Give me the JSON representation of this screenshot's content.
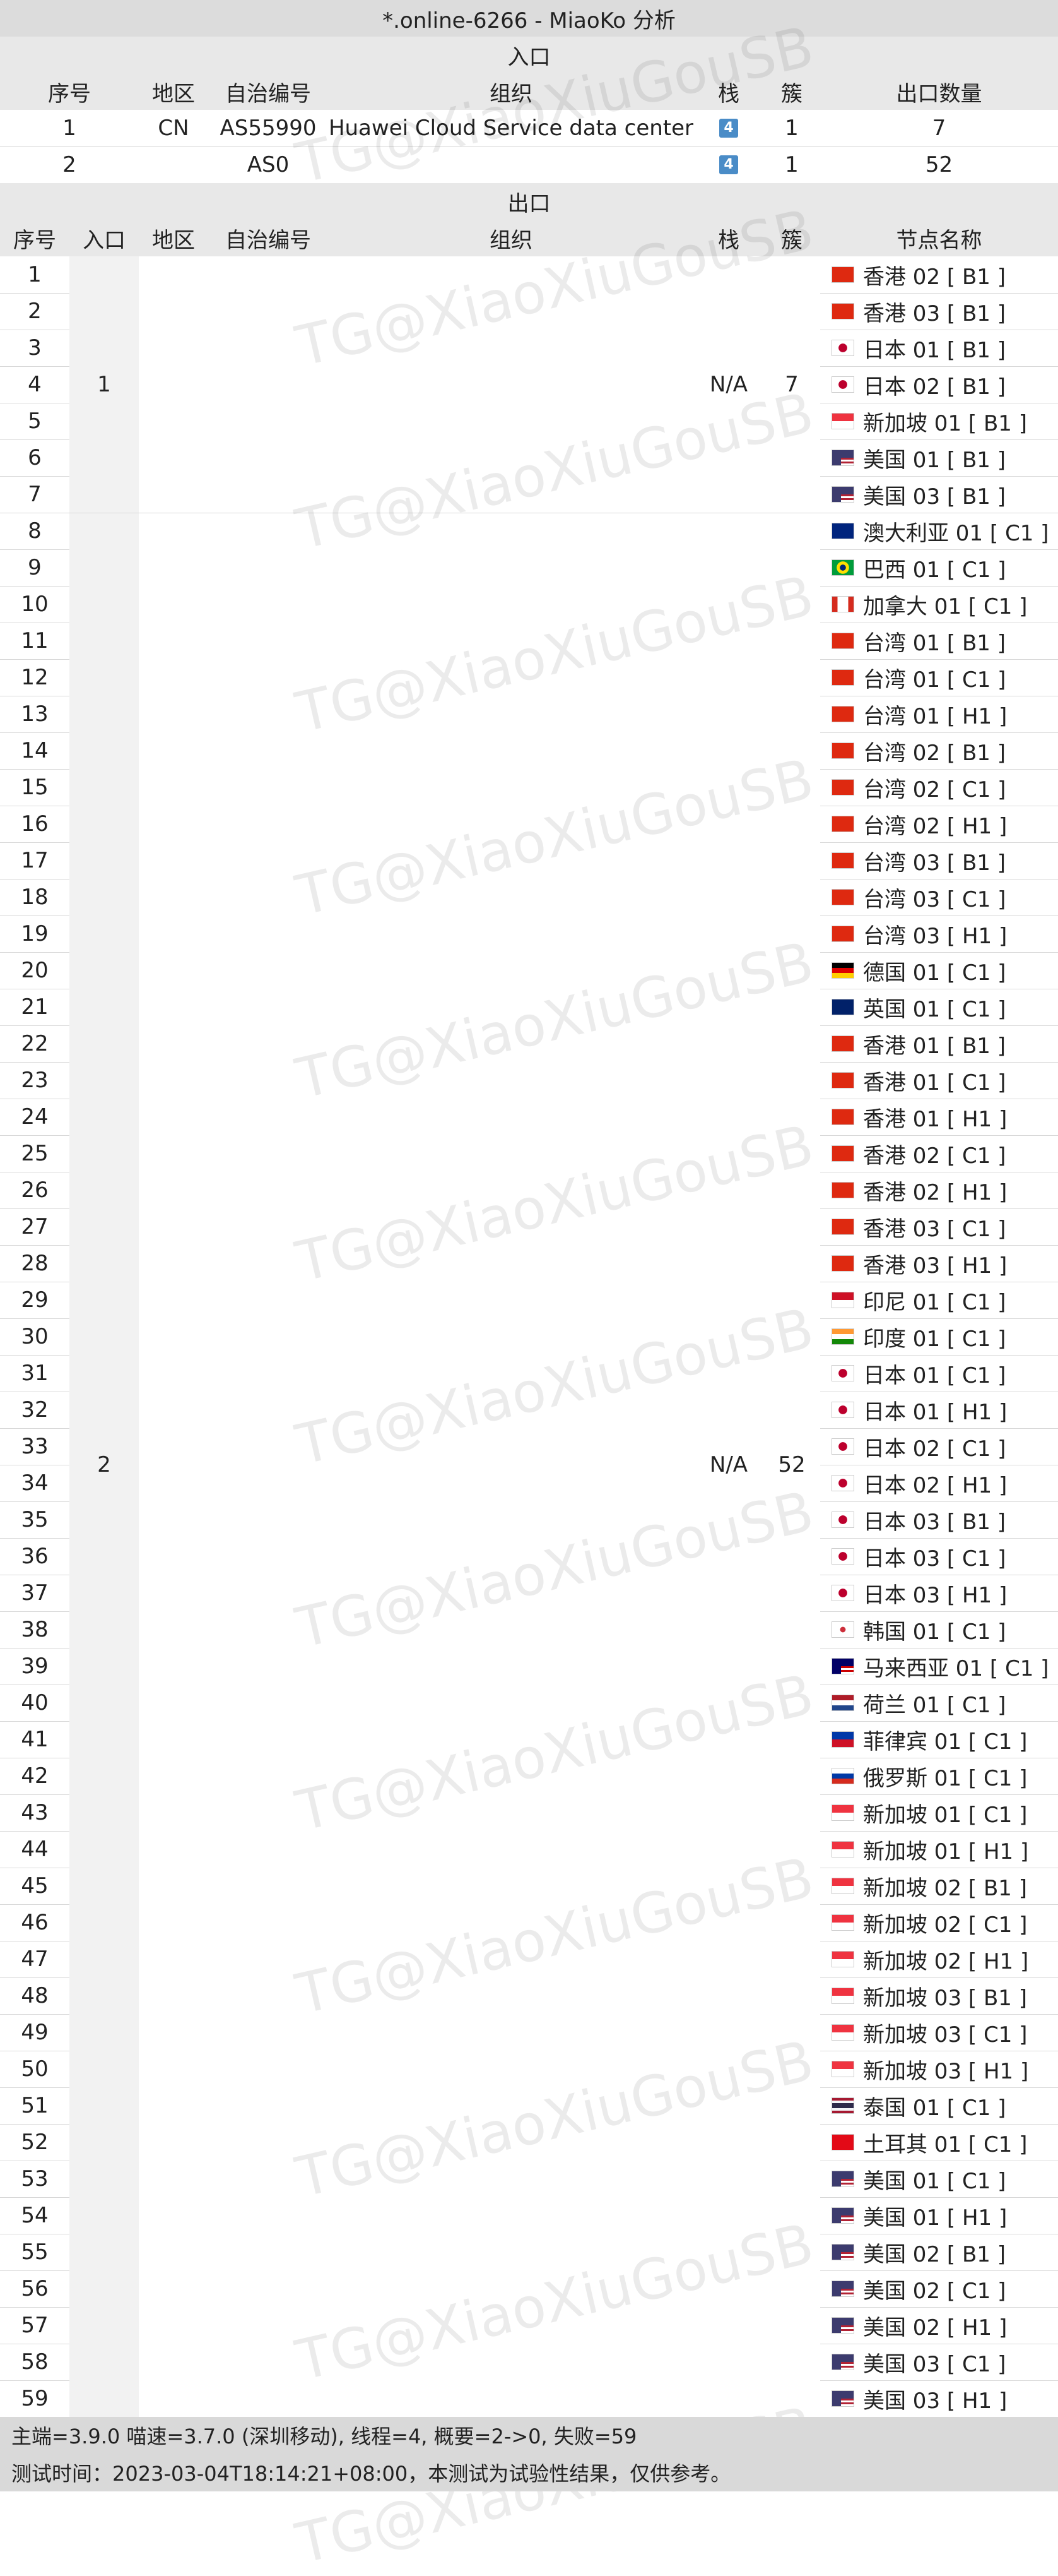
{
  "title": "*.online-6266 - MiaoKo 分析",
  "entry_section": "入口",
  "exit_section": "出口",
  "entry_headers": [
    "序号",
    "地区",
    "自治编号",
    "组织",
    "栈",
    "簇",
    "出口数量"
  ],
  "entry_rows": [
    {
      "idx": "1",
      "region": "CN",
      "asn": "AS55990",
      "org": "Huawei Cloud Service data center",
      "stack": "4",
      "cluster": "1",
      "exits": "7"
    },
    {
      "idx": "2",
      "region": "",
      "asn": "AS0",
      "org": "",
      "stack": "4",
      "cluster": "1",
      "exits": "52"
    }
  ],
  "exit_headers": [
    "序号",
    "入口",
    "地区",
    "自治编号",
    "组织",
    "栈",
    "簇",
    "节点名称"
  ],
  "exit_groups": [
    {
      "entry": "1",
      "stack": "N/A",
      "cluster": "7",
      "start": 1,
      "end": 7
    },
    {
      "entry": "2",
      "stack": "N/A",
      "cluster": "52",
      "start": 8,
      "end": 59
    }
  ],
  "nodes": [
    {
      "idx": "1",
      "flag": "hk",
      "name": "香港 02 [ B1 ]"
    },
    {
      "idx": "2",
      "flag": "hk",
      "name": "香港 03 [ B1 ]"
    },
    {
      "idx": "3",
      "flag": "jp",
      "name": "日本 01 [ B1 ]"
    },
    {
      "idx": "4",
      "flag": "jp",
      "name": "日本 02 [ B1 ]"
    },
    {
      "idx": "5",
      "flag": "sg",
      "name": "新加坡 01 [ B1 ]"
    },
    {
      "idx": "6",
      "flag": "us",
      "name": "美国 01 [ B1 ]"
    },
    {
      "idx": "7",
      "flag": "us",
      "name": "美国 03 [ B1 ]"
    },
    {
      "idx": "8",
      "flag": "au",
      "name": "澳大利亚 01 [ C1 ]"
    },
    {
      "idx": "9",
      "flag": "br",
      "name": "巴西 01 [ C1 ]"
    },
    {
      "idx": "10",
      "flag": "ca",
      "name": "加拿大 01 [ C1 ]"
    },
    {
      "idx": "11",
      "flag": "cn",
      "name": "台湾 01 [ B1 ]"
    },
    {
      "idx": "12",
      "flag": "cn",
      "name": "台湾 01 [ C1 ]"
    },
    {
      "idx": "13",
      "flag": "cn",
      "name": "台湾 01 [ H1 ]"
    },
    {
      "idx": "14",
      "flag": "cn",
      "name": "台湾 02 [ B1 ]"
    },
    {
      "idx": "15",
      "flag": "cn",
      "name": "台湾 02 [ C1 ]"
    },
    {
      "idx": "16",
      "flag": "cn",
      "name": "台湾 02 [ H1 ]"
    },
    {
      "idx": "17",
      "flag": "cn",
      "name": "台湾 03 [ B1 ]"
    },
    {
      "idx": "18",
      "flag": "cn",
      "name": "台湾 03 [ C1 ]"
    },
    {
      "idx": "19",
      "flag": "cn",
      "name": "台湾 03 [ H1 ]"
    },
    {
      "idx": "20",
      "flag": "de",
      "name": "德国 01 [ C1 ]"
    },
    {
      "idx": "21",
      "flag": "gb",
      "name": "英国 01 [ C1 ]"
    },
    {
      "idx": "22",
      "flag": "hk",
      "name": "香港 01 [ B1 ]"
    },
    {
      "idx": "23",
      "flag": "hk",
      "name": "香港 01 [ C1 ]"
    },
    {
      "idx": "24",
      "flag": "hk",
      "name": "香港 01 [ H1 ]"
    },
    {
      "idx": "25",
      "flag": "hk",
      "name": "香港 02 [ C1 ]"
    },
    {
      "idx": "26",
      "flag": "hk",
      "name": "香港 02 [ H1 ]"
    },
    {
      "idx": "27",
      "flag": "hk",
      "name": "香港 03 [ C1 ]"
    },
    {
      "idx": "28",
      "flag": "hk",
      "name": "香港 03 [ H1 ]"
    },
    {
      "idx": "29",
      "flag": "id",
      "name": "印尼 01 [ C1 ]"
    },
    {
      "idx": "30",
      "flag": "in",
      "name": "印度 01 [ C1 ]"
    },
    {
      "idx": "31",
      "flag": "jp",
      "name": "日本 01 [ C1 ]"
    },
    {
      "idx": "32",
      "flag": "jp",
      "name": "日本 01 [ H1 ]"
    },
    {
      "idx": "33",
      "flag": "jp",
      "name": "日本 02 [ C1 ]"
    },
    {
      "idx": "34",
      "flag": "jp",
      "name": "日本 02 [ H1 ]"
    },
    {
      "idx": "35",
      "flag": "jp",
      "name": "日本 03 [ B1 ]"
    },
    {
      "idx": "36",
      "flag": "jp",
      "name": "日本 03 [ C1 ]"
    },
    {
      "idx": "37",
      "flag": "jp",
      "name": "日本 03 [ H1 ]"
    },
    {
      "idx": "38",
      "flag": "kr",
      "name": "韩国 01 [ C1 ]"
    },
    {
      "idx": "39",
      "flag": "my",
      "name": "马来西亚 01 [ C1 ]"
    },
    {
      "idx": "40",
      "flag": "nl",
      "name": "荷兰 01 [ C1 ]"
    },
    {
      "idx": "41",
      "flag": "ph",
      "name": "菲律宾 01 [ C1 ]"
    },
    {
      "idx": "42",
      "flag": "ru",
      "name": "俄罗斯 01 [ C1 ]"
    },
    {
      "idx": "43",
      "flag": "sg",
      "name": "新加坡 01 [ C1 ]"
    },
    {
      "idx": "44",
      "flag": "sg",
      "name": "新加坡 01 [ H1 ]"
    },
    {
      "idx": "45",
      "flag": "sg",
      "name": "新加坡 02 [ B1 ]"
    },
    {
      "idx": "46",
      "flag": "sg",
      "name": "新加坡 02 [ C1 ]"
    },
    {
      "idx": "47",
      "flag": "sg",
      "name": "新加坡 02 [ H1 ]"
    },
    {
      "idx": "48",
      "flag": "sg",
      "name": "新加坡 03 [ B1 ]"
    },
    {
      "idx": "49",
      "flag": "sg",
      "name": "新加坡 03 [ C1 ]"
    },
    {
      "idx": "50",
      "flag": "sg",
      "name": "新加坡 03 [ H1 ]"
    },
    {
      "idx": "51",
      "flag": "th",
      "name": "泰国 01 [ C1 ]"
    },
    {
      "idx": "52",
      "flag": "tr",
      "name": "土耳其 01 [ C1 ]"
    },
    {
      "idx": "53",
      "flag": "us",
      "name": "美国 01 [ C1 ]"
    },
    {
      "idx": "54",
      "flag": "us",
      "name": "美国 01 [ H1 ]"
    },
    {
      "idx": "55",
      "flag": "us",
      "name": "美国 02 [ B1 ]"
    },
    {
      "idx": "56",
      "flag": "us",
      "name": "美国 02 [ C1 ]"
    },
    {
      "idx": "57",
      "flag": "us",
      "name": "美国 02 [ H1 ]"
    },
    {
      "idx": "58",
      "flag": "us",
      "name": "美国 03 [ C1 ]"
    },
    {
      "idx": "59",
      "flag": "us",
      "name": "美国 03 [ H1 ]"
    }
  ],
  "watermark": "TG@XiaoXiuGouSB",
  "footer": {
    "line1": "主端=3.9.0 喵速=3.7.0 (深圳移动), 线程=4, 概要=2->0, 失败=59",
    "line2": "测试时间：2023-03-04T18:14:21+08:00，本测试为试验性结果，仅供参考。"
  },
  "colors": {
    "header_bg": "#e8e8e8",
    "footer_bg": "#d9d9d9",
    "badge": "#4a8cc7",
    "gray_col": "#f2f2f2"
  }
}
